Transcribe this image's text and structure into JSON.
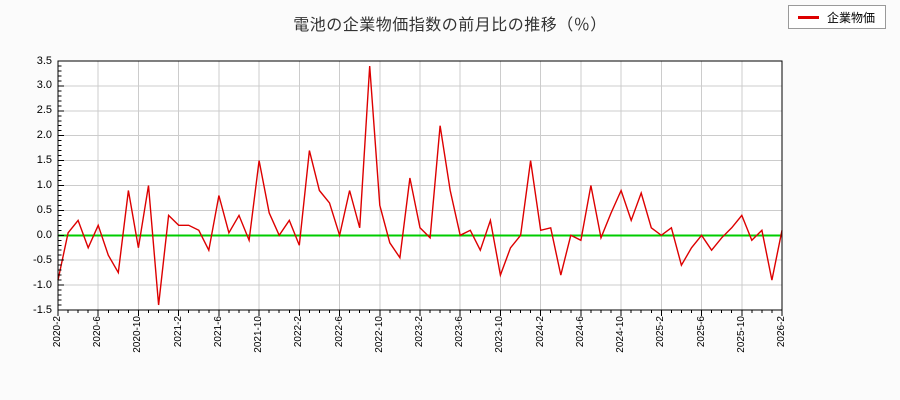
{
  "title": "電池の企業物価指数の前月比の推移（％）",
  "legend": {
    "label": "企業物価"
  },
  "colors": {
    "series": "#dd0000",
    "zero_line": "#00cc00",
    "grid": "#cccccc",
    "frame": "#000000",
    "plot_background": "#ffffff"
  },
  "chart_data": {
    "type": "line",
    "title": "電池の企業物価指数の前月比の推移（％）",
    "xlabel": "",
    "ylabel": "",
    "ylim": [
      -1.5,
      3.5
    ],
    "grid": true,
    "zero_line": true,
    "legend_position": "top-right",
    "y_tick_labels": [
      "3.5",
      "3.0",
      "2.5",
      "2.0",
      "1.5",
      "1.0",
      "0.5",
      "0.0",
      "-0.5",
      "-1.0",
      "-1.5"
    ],
    "x_tick_labels": [
      "2020-2",
      "2020-6",
      "2020-10",
      "2021-2",
      "2021-6",
      "2021-10",
      "2022-2",
      "2022-6",
      "2022-10",
      "2023-2",
      "2023-6",
      "2023-10",
      "2024-2",
      "2024-6",
      "2024-10",
      "2025-2",
      "2025-6",
      "2025-10",
      "2026-2"
    ],
    "x_tick_every_months": 4,
    "x": [
      "2020-2",
      "2020-3",
      "2020-4",
      "2020-5",
      "2020-6",
      "2020-7",
      "2020-8",
      "2020-9",
      "2020-10",
      "2020-11",
      "2020-12",
      "2021-1",
      "2021-2",
      "2021-3",
      "2021-4",
      "2021-5",
      "2021-6",
      "2021-7",
      "2021-8",
      "2021-9",
      "2021-10",
      "2021-11",
      "2021-12",
      "2022-1",
      "2022-2",
      "2022-3",
      "2022-4",
      "2022-5",
      "2022-6",
      "2022-7",
      "2022-8",
      "2022-9",
      "2022-10",
      "2022-11",
      "2022-12",
      "2023-1",
      "2023-2",
      "2023-3",
      "2023-4",
      "2023-5",
      "2023-6",
      "2023-7",
      "2023-8",
      "2023-9",
      "2023-10",
      "2023-11",
      "2023-12",
      "2024-1",
      "2024-2",
      "2024-3",
      "2024-4",
      "2024-5",
      "2024-6",
      "2024-7",
      "2024-8",
      "2024-9",
      "2024-10",
      "2024-11",
      "2024-12",
      "2025-1",
      "2025-2",
      "2025-3",
      "2025-4",
      "2025-5",
      "2025-6",
      "2025-7",
      "2025-8",
      "2025-9",
      "2025-10",
      "2025-11",
      "2025-12",
      "2026-1",
      "2026-2"
    ],
    "series": [
      {
        "name": "企業物価",
        "color": "#dd0000",
        "values": [
          -0.9,
          0.05,
          0.3,
          -0.25,
          0.2,
          -0.4,
          -0.75,
          0.9,
          -0.25,
          1.0,
          -1.4,
          0.4,
          0.2,
          0.2,
          0.1,
          -0.3,
          0.8,
          0.05,
          0.4,
          -0.1,
          1.5,
          0.45,
          0.0,
          0.3,
          -0.2,
          1.7,
          0.9,
          0.65,
          0.0,
          0.9,
          0.15,
          3.4,
          0.6,
          -0.15,
          -0.45,
          1.15,
          0.15,
          -0.05,
          2.2,
          0.9,
          0.0,
          0.1,
          -0.3,
          0.3,
          -0.8,
          -0.25,
          0.0,
          1.5,
          0.1,
          0.15,
          -0.8,
          0.0,
          -0.1,
          1.0,
          -0.05,
          0.45,
          0.9,
          0.3,
          0.85,
          0.15,
          0.0,
          0.15,
          -0.6,
          -0.25,
          0.0,
          -0.3,
          -0.05,
          0.15,
          0.4,
          -0.1,
          0.1,
          -0.9,
          0.1
        ]
      }
    ]
  }
}
